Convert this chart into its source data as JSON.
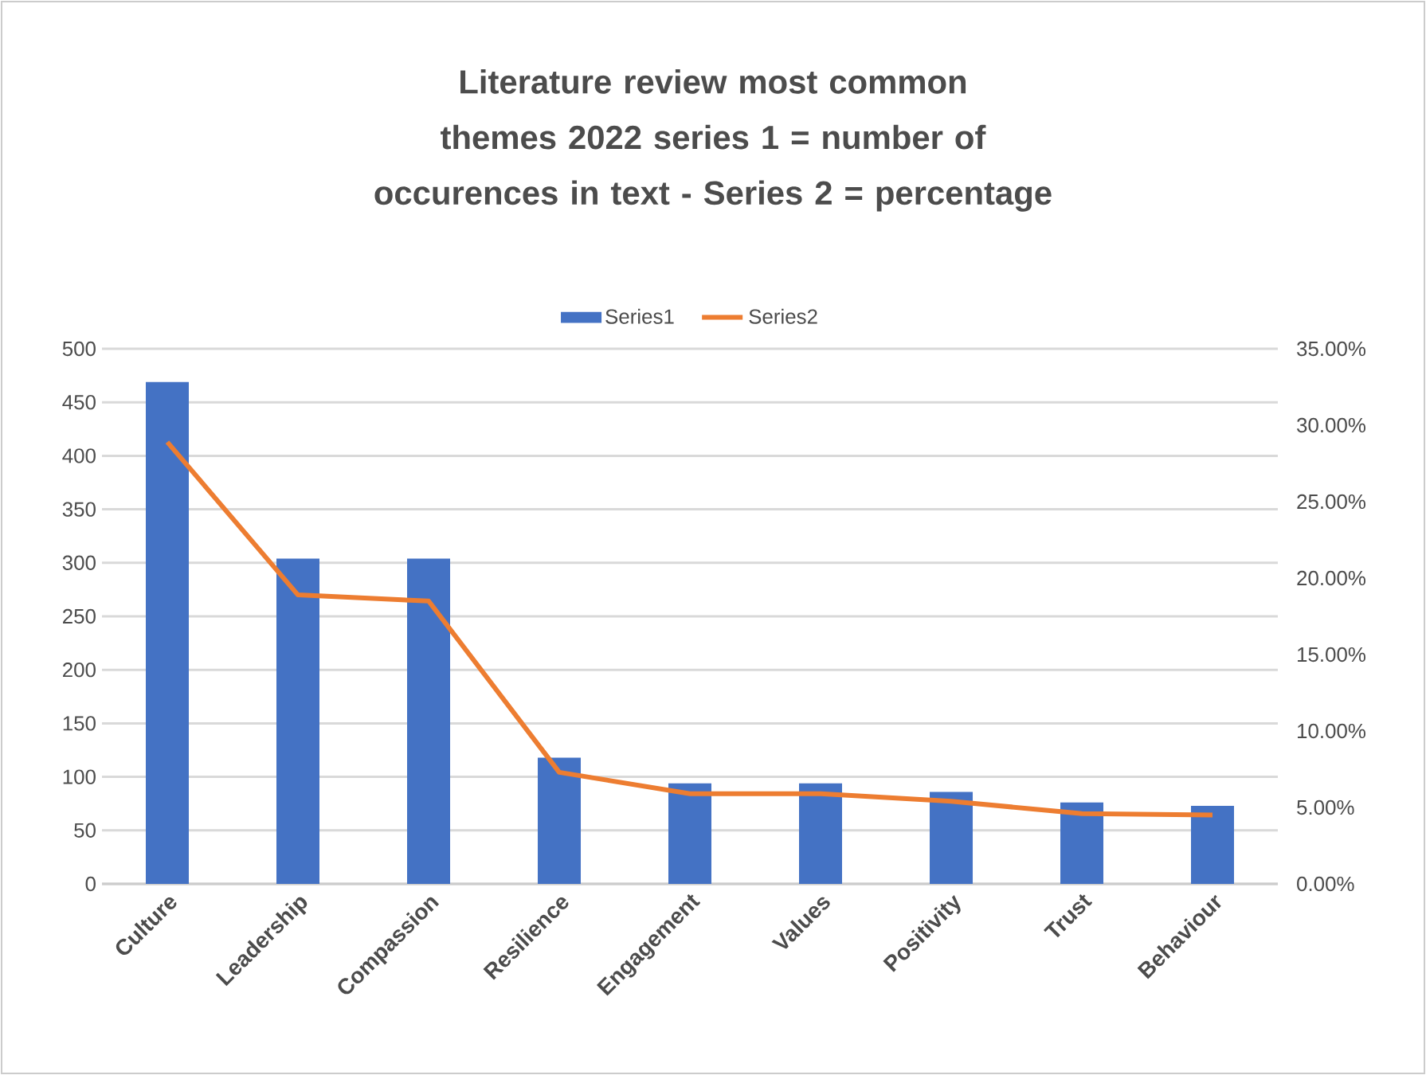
{
  "chart_data": {
    "type": "bar",
    "title": "Literature review most common themes 2022 series 1 = number of occurences in text - Series 2 = percentage",
    "categories": [
      "Culture",
      "Leadership",
      "Compassion",
      "Resilience",
      "Engagement",
      "Values",
      "Positivity",
      "Trust",
      "Behaviour"
    ],
    "series": [
      {
        "name": "Series1",
        "color": "#4472c4",
        "values": [
          469,
          304,
          304,
          118,
          94,
          94,
          86,
          76,
          73
        ]
      },
      {
        "name": "Series2",
        "type": "line",
        "axis": "y2",
        "color": "#ed7d31",
        "values": [
          28.9,
          18.9,
          18.5,
          7.3,
          5.9,
          5.9,
          5.4,
          4.6,
          4.5
        ]
      }
    ],
    "ylim": [
      0,
      500
    ],
    "yticks": [
      0,
      50,
      100,
      150,
      200,
      250,
      300,
      350,
      400,
      450,
      500
    ],
    "y2lim": [
      0,
      35
    ],
    "y2ticks": [
      {
        "value": 0,
        "label": "0.00%"
      },
      {
        "value": 5,
        "label": "5.00%"
      },
      {
        "value": 10,
        "label": "10.00%"
      },
      {
        "value": 15,
        "label": "15.00%"
      },
      {
        "value": 20,
        "label": "20.00%"
      },
      {
        "value": 25,
        "label": "25.00%"
      },
      {
        "value": 30,
        "label": "30.00%"
      },
      {
        "value": 35,
        "label": "35.00%"
      }
    ],
    "grid": "y",
    "legend": "top",
    "marker": "none"
  }
}
